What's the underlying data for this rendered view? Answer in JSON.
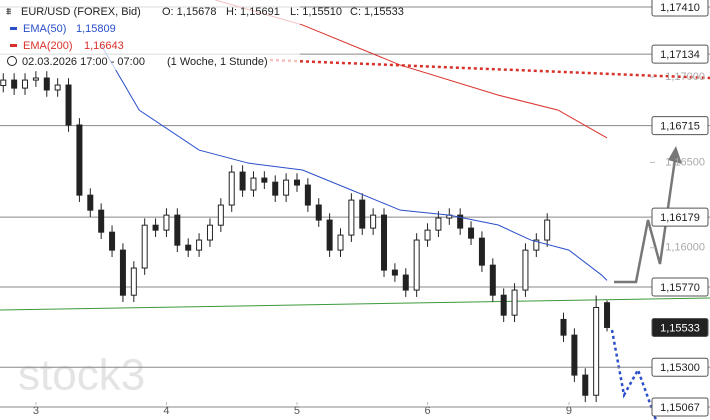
{
  "header": {
    "symbol": "EUR/USD (FOREX, Bid)",
    "open": "O: 1,15678",
    "high": "H: 1,15691",
    "low": "L: 1,15510",
    "close": "C: 1,15533",
    "ema50_label": "EMA(50)",
    "ema50_value": "1,15809",
    "ema200_label": "EMA(200)",
    "ema200_value": "1,16643",
    "date": "02.03.2026 17:00 - 07:00",
    "interval": "(1 Woche, 1 Stunde)"
  },
  "watermark": "stock3",
  "chart_data": {
    "type": "candlestick",
    "xlim": [
      -6.6,
      112.9
    ],
    "ylim": [
      1.14991,
      1.17451
    ],
    "xticks": [
      {
        "value": 0,
        "label": "3"
      },
      {
        "value": 24,
        "label": "4"
      },
      {
        "value": 48,
        "label": "5"
      },
      {
        "value": 72,
        "label": "6"
      },
      {
        "value": 98,
        "label": "9"
      }
    ],
    "yticks": [
      {
        "value": 1.17,
        "label": "1,17000"
      },
      {
        "value": 1.165,
        "label": "1,16500"
      },
      {
        "value": 1.16,
        "label": "1,16000"
      }
    ],
    "levels": [
      {
        "value": 1.1741,
        "label": "1,17410",
        "box_color": "#ffffff",
        "line": true
      },
      {
        "value": 1.17134,
        "label": "1,17134",
        "box_color": "#ffffff",
        "line": true
      },
      {
        "value": 1.16715,
        "label": "1,16715",
        "box_color": "#ffffff",
        "line": true
      },
      {
        "value": 1.16179,
        "label": "1,16179",
        "box_color": "#ffffff",
        "line": true
      },
      {
        "value": 1.1577,
        "label": "1,15770",
        "box_color": "#ffffff",
        "line": true
      },
      {
        "value": 1.15533,
        "label": "1,15533",
        "box_color": "#222222",
        "line": false
      },
      {
        "value": 1.153,
        "label": "1,15300",
        "box_color": "#ffffff",
        "line": true
      },
      {
        "value": 1.15067,
        "label": "1,15067",
        "box_color": "#ffffff",
        "line": true
      }
    ],
    "candle_color": "#222222",
    "x": [
      -6,
      -4,
      -2,
      0,
      2,
      4,
      6,
      8,
      10,
      12,
      14,
      16,
      18,
      20,
      22,
      24,
      26,
      28,
      30,
      32,
      34,
      36,
      38,
      40,
      42,
      44,
      46,
      48,
      50,
      52,
      54,
      56,
      58,
      60,
      62,
      64,
      66,
      68,
      70,
      72,
      74,
      76,
      78,
      80,
      82,
      84,
      86,
      88,
      90,
      92,
      94,
      97,
      99,
      101,
      103,
      105
    ],
    "open": [
      1.1695,
      1.16982,
      1.16935,
      1.16982,
      1.16994,
      1.16924,
      1.16953,
      1.16719,
      1.16308,
      1.1622,
      1.16091,
      1.15986,
      1.15722,
      1.15881,
      1.16132,
      1.16103,
      1.16191,
      1.16015,
      1.15986,
      1.16045,
      1.16132,
      1.1625,
      1.16443,
      1.16338,
      1.16408,
      1.16384,
      1.16308,
      1.16396,
      1.16367,
      1.1625,
      1.16162,
      1.15986,
      1.16074,
      1.16279,
      1.16115,
      1.16191,
      1.15869,
      1.1584,
      1.15752,
      1.16045,
      1.16103,
      1.16174,
      1.16191,
      1.16115,
      1.16056,
      1.15898,
      1.15722,
      1.15605,
      1.15752,
      1.15986,
      1.16045,
      1.1558,
      1.15488,
      1.15254,
      1.15136,
      1.15678
    ],
    "high": [
      1.17022,
      1.17022,
      1.17022,
      1.17034,
      1.17034,
      1.16993,
      1.16993,
      1.16759,
      1.16348,
      1.1626,
      1.16131,
      1.16026,
      1.15921,
      1.16172,
      1.16172,
      1.16231,
      1.16231,
      1.16055,
      1.16085,
      1.16172,
      1.1629,
      1.16483,
      1.16483,
      1.16448,
      1.16448,
      1.16424,
      1.16436,
      1.16436,
      1.16407,
      1.1629,
      1.16202,
      1.16114,
      1.16319,
      1.16319,
      1.16231,
      1.16231,
      1.15909,
      1.1588,
      1.16085,
      1.16143,
      1.16214,
      1.16231,
      1.16231,
      1.16155,
      1.16096,
      1.15938,
      1.15762,
      1.15792,
      1.16026,
      1.16085,
      1.16202,
      1.1562,
      1.15528,
      1.15294,
      1.1572,
      1.15691
    ],
    "low": [
      1.1691,
      1.16895,
      1.16895,
      1.16942,
      1.16884,
      1.16884,
      1.16679,
      1.16268,
      1.1618,
      1.16051,
      1.15946,
      1.15682,
      1.15682,
      1.15841,
      1.16063,
      1.16063,
      1.15975,
      1.15946,
      1.15946,
      1.16005,
      1.16092,
      1.1621,
      1.16298,
      1.16298,
      1.16344,
      1.16268,
      1.16268,
      1.16327,
      1.1621,
      1.16122,
      1.15946,
      1.15946,
      1.16034,
      1.16075,
      1.16075,
      1.15829,
      1.158,
      1.15712,
      1.15712,
      1.16005,
      1.16063,
      1.16134,
      1.16075,
      1.16016,
      1.15858,
      1.15682,
      1.15565,
      1.15565,
      1.15712,
      1.15946,
      1.16005,
      1.15448,
      1.15214,
      1.15096,
      1.15096,
      1.1551
    ],
    "close": [
      1.16982,
      1.16935,
      1.16982,
      1.16994,
      1.16924,
      1.16953,
      1.16719,
      1.16308,
      1.1622,
      1.16091,
      1.15986,
      1.15722,
      1.15881,
      1.16132,
      1.16103,
      1.16191,
      1.16015,
      1.15986,
      1.16045,
      1.16132,
      1.1625,
      1.16443,
      1.16338,
      1.16408,
      1.16384,
      1.16308,
      1.16396,
      1.16367,
      1.1625,
      1.16162,
      1.15986,
      1.16074,
      1.16279,
      1.16115,
      1.16191,
      1.15869,
      1.1584,
      1.15752,
      1.16045,
      1.16103,
      1.16174,
      1.16191,
      1.16115,
      1.16056,
      1.15898,
      1.15722,
      1.15605,
      1.15752,
      1.15986,
      1.16045,
      1.16162,
      1.15488,
      1.15254,
      1.15136,
      1.1565,
      1.15533
    ],
    "series": [
      {
        "name": "EMA(50)",
        "color": "#2a4fc9",
        "x": [
          12,
          19,
          30,
          39,
          49,
          58,
          67,
          76,
          85,
          91,
          98,
          104,
          105
        ],
        "values": [
          1.17187,
          1.16806,
          1.16572,
          1.16496,
          1.16455,
          1.16338,
          1.1622,
          1.16191,
          1.16133,
          1.16045,
          1.15986,
          1.1584,
          1.15809
        ]
      },
      {
        "name": "EMA(200)",
        "color": "#d9302a",
        "x": [
          33,
          49,
          67,
          85,
          96,
          105
        ],
        "values": [
          1.17451,
          1.17305,
          1.1707,
          1.16894,
          1.16806,
          1.16643
        ]
      }
    ]
  }
}
